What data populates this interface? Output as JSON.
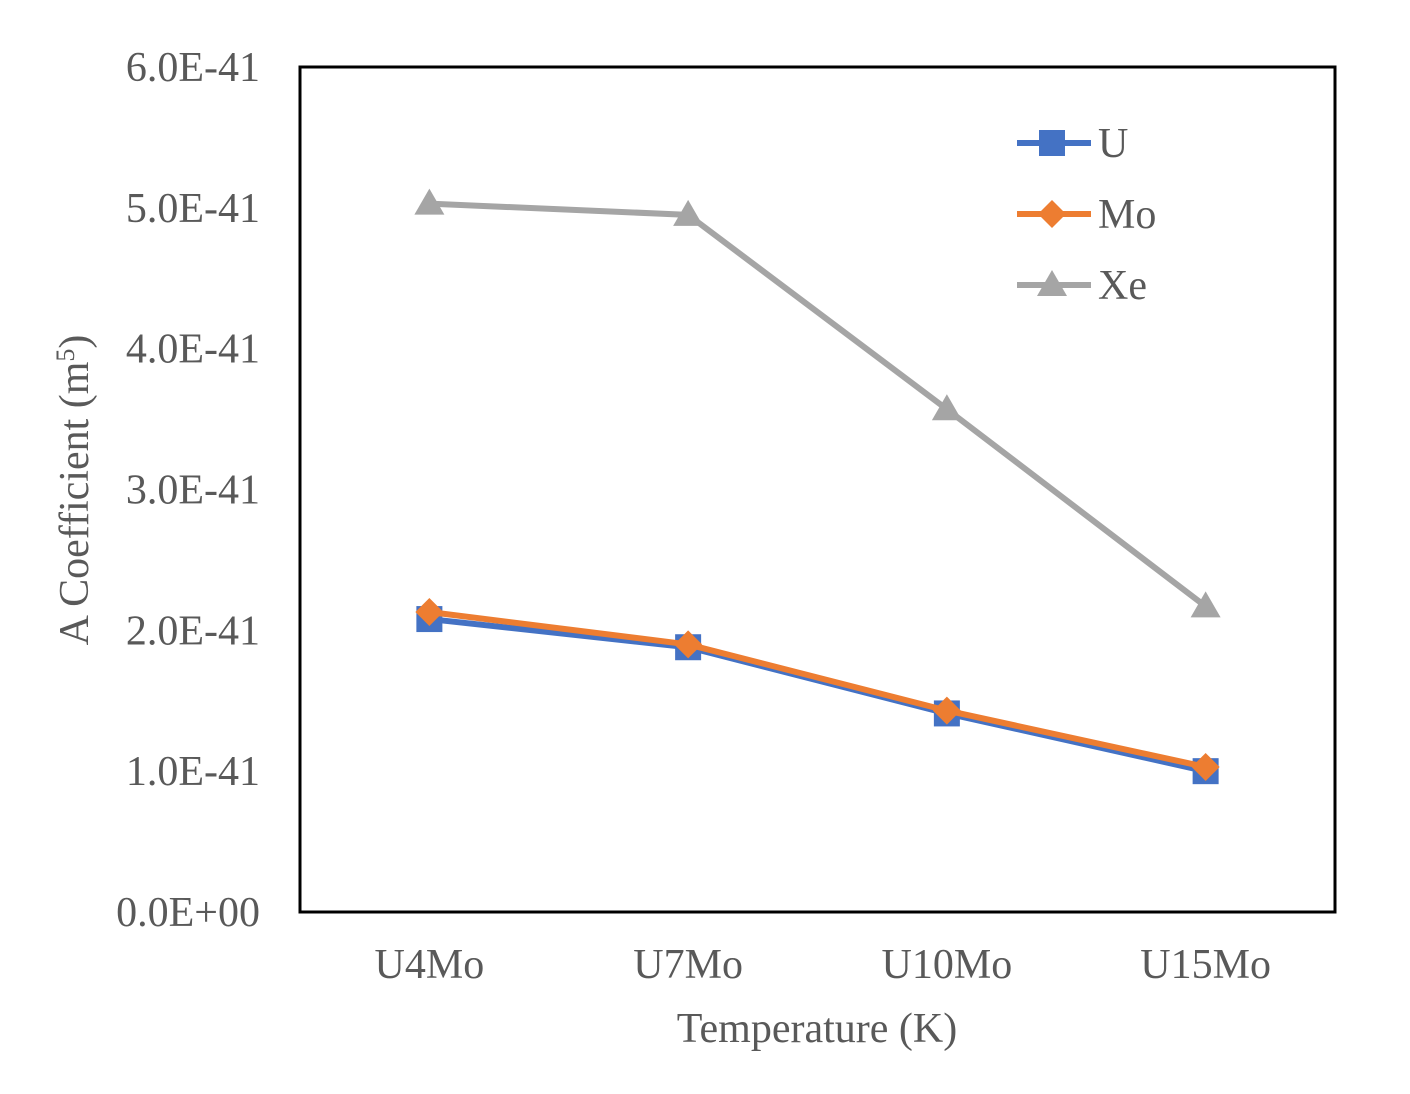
{
  "chart_data": {
    "type": "line",
    "title": "",
    "xlabel": "Temperature (K)",
    "ylabel": {
      "text": "A Coefficient (m",
      "superscript": "5",
      "suffix": ")"
    },
    "categories": [
      "U4Mo",
      "U7Mo",
      "U10Mo",
      "U15Mo"
    ],
    "ylim": [
      0,
      6e-41
    ],
    "yticks": [
      0,
      1e-41,
      2e-41,
      3e-41,
      4e-41,
      5e-41,
      6e-41
    ],
    "ytick_labels": [
      "0.0E+00",
      "1.0E-41",
      "2.0E-41",
      "3.0E-41",
      "4.0E-41",
      "5.0E-41",
      "6.0E-41"
    ],
    "grid": false,
    "legend_position": "top-right",
    "series": [
      {
        "name": "U",
        "marker": "square",
        "color": "#4472C4",
        "values": [
          2.08e-41,
          1.88e-41,
          1.41e-41,
          1e-41
        ]
      },
      {
        "name": "Mo",
        "marker": "diamond",
        "color": "#ED7D31",
        "values": [
          2.13e-41,
          1.9e-41,
          1.43e-41,
          1.03e-41
        ]
      },
      {
        "name": "Xe",
        "marker": "triangle",
        "color": "#A5A5A5",
        "values": [
          5.03e-41,
          4.95e-41,
          3.57e-41,
          2.17e-41
        ]
      }
    ]
  }
}
